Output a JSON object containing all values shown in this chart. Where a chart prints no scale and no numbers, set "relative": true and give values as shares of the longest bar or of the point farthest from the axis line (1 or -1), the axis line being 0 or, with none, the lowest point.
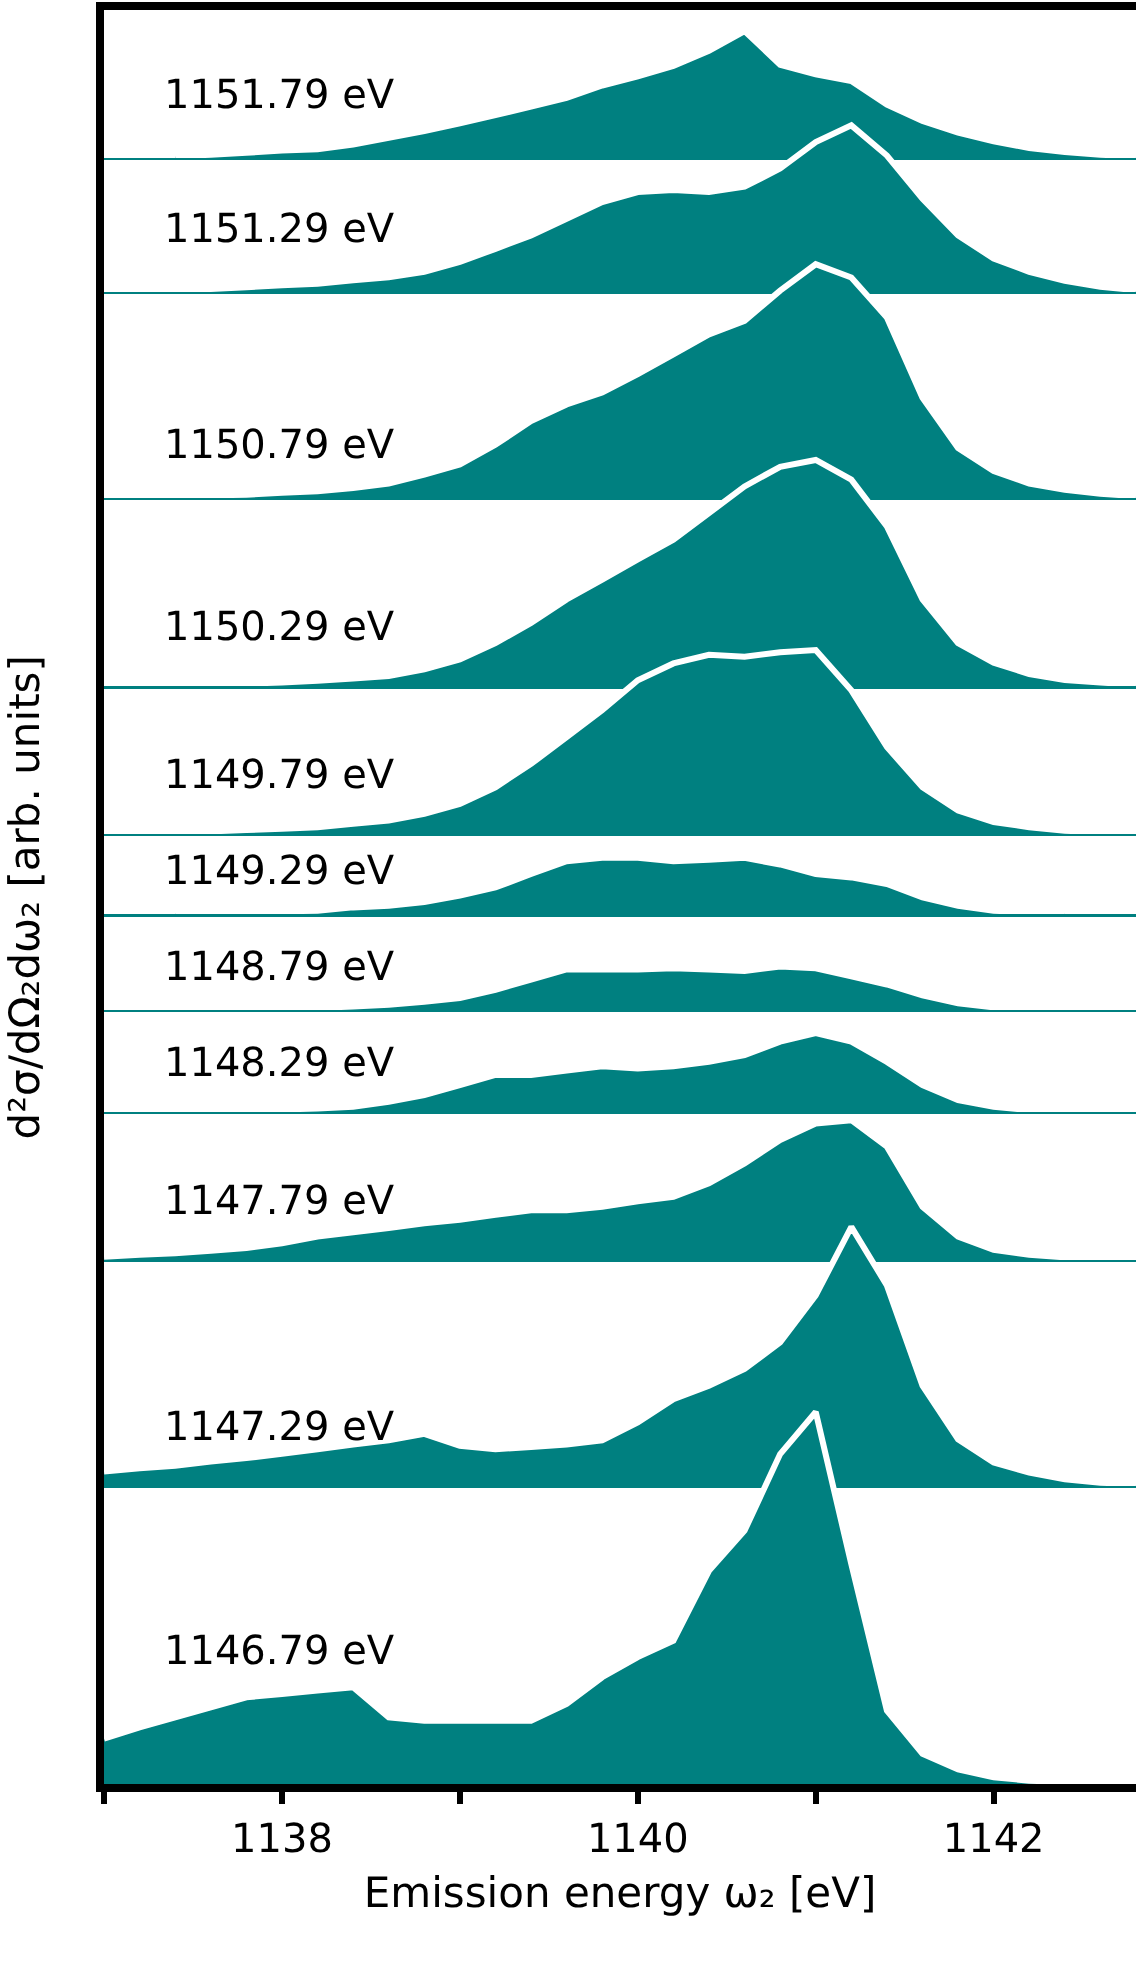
{
  "chart_data": [
    {
      "type": "area",
      "relative": true,
      "tick_labels": false,
      "xlim": [
        1137,
        1142.8
      ],
      "x": [
        1137.4,
        1137.6,
        1137.8,
        1138,
        1138.2,
        1138.4,
        1138.6,
        1138.8,
        1139,
        1139.2,
        1139.4,
        1139.6,
        1139.8,
        1140,
        1140.2,
        1140.4,
        1140.6,
        1140.8,
        1141,
        1141.2,
        1141.4,
        1141.6,
        1141.8,
        1142,
        1142.2,
        1142.4,
        1142.6,
        1142.8
      ],
      "series": [
        {
          "name": "1151.79 eV",
          "color": "#008080",
          "values": [
            0.012,
            0.026,
            0.041,
            0.059,
            0.068,
            0.106,
            0.159,
            0.212,
            0.274,
            0.338,
            0.406,
            0.474,
            0.571,
            0.644,
            0.726,
            0.844,
            1,
            0.735,
            0.659,
            0.606,
            0.421,
            0.291,
            0.2,
            0.132,
            0.079,
            0.047,
            0.026,
            0.012
          ]
        }
      ]
    },
    {
      "type": "area",
      "relative": true,
      "tick_labels": false,
      "xlim": [
        1137,
        1142.8
      ],
      "x": [
        1137,
        1137.2,
        1137.4,
        1137.6,
        1137.8,
        1138,
        1138.2,
        1138.4,
        1138.6,
        1138.8,
        1139,
        1139.2,
        1139.4,
        1139.6,
        1139.8,
        1140,
        1140.2,
        1140.4,
        1140.6,
        1140.8,
        1141,
        1141.2,
        1141.4,
        1141.6,
        1141.8,
        1142,
        1142.2,
        1142.4,
        1142.6,
        1142.8
      ],
      "series": [
        {
          "name": "1151.29 eV",
          "color": "#008080",
          "values": [
            0,
            0.007,
            0.011,
            0.018,
            0.029,
            0.04,
            0.049,
            0.071,
            0.089,
            0.121,
            0.181,
            0.259,
            0.339,
            0.44,
            0.54,
            0.6,
            0.612,
            0.6,
            0.632,
            0.741,
            0.9,
            1,
            0.819,
            0.56,
            0.339,
            0.201,
            0.121,
            0.067,
            0.031,
            0.011
          ]
        }
      ]
    },
    {
      "type": "area",
      "relative": true,
      "tick_labels": false,
      "xlim": [
        1137,
        1142.8
      ],
      "x": [
        1137,
        1137.2,
        1137.4,
        1137.6,
        1137.8,
        1138,
        1138.2,
        1138.4,
        1138.6,
        1138.8,
        1139,
        1139.2,
        1139.4,
        1139.6,
        1139.8,
        1140,
        1140.2,
        1140.4,
        1140.6,
        1140.8,
        1141,
        1141.2,
        1141.4,
        1141.6,
        1141.8,
        1142,
        1142.2,
        1142.4,
        1142.6,
        1142.8
      ],
      "series": [
        {
          "name": "1150.79 eV",
          "color": "#008080",
          "values": [
            0,
            0.005,
            0.008,
            0.011,
            0.014,
            0.022,
            0.029,
            0.043,
            0.062,
            0.1,
            0.144,
            0.228,
            0.329,
            0.4,
            0.451,
            0.53,
            0.614,
            0.7,
            0.758,
            0.887,
            1,
            0.943,
            0.772,
            0.429,
            0.214,
            0.115,
            0.062,
            0.035,
            0.018,
            0.008
          ]
        }
      ]
    },
    {
      "type": "area",
      "relative": true,
      "tick_labels": false,
      "xlim": [
        1137,
        1142.8
      ],
      "x": [
        1137,
        1137.2,
        1137.4,
        1137.6,
        1137.8,
        1138,
        1138.2,
        1138.4,
        1138.6,
        1138.8,
        1139,
        1139.2,
        1139.4,
        1139.6,
        1139.8,
        1140,
        1140.2,
        1140.4,
        1140.6,
        1140.8,
        1141,
        1141.2,
        1141.4,
        1141.6,
        1141.8,
        1142,
        1142.2,
        1142.4,
        1142.6,
        1142.8
      ],
      "series": [
        {
          "name": "1150.29 eV",
          "color": "#008080",
          "values": [
            0,
            0.003,
            0.005,
            0.008,
            0.011,
            0.015,
            0.023,
            0.033,
            0.044,
            0.074,
            0.118,
            0.19,
            0.279,
            0.383,
            0.471,
            0.56,
            0.647,
            0.765,
            0.883,
            0.97,
            1,
            0.913,
            0.706,
            0.383,
            0.19,
            0.103,
            0.053,
            0.026,
            0.015,
            0.007
          ]
        }
      ]
    },
    {
      "type": "area",
      "relative": true,
      "tick_labels": false,
      "xlim": [
        1137,
        1142.8
      ],
      "x": [
        1137,
        1137.2,
        1137.4,
        1137.6,
        1137.8,
        1138,
        1138.2,
        1138.4,
        1138.6,
        1138.8,
        1139,
        1139.2,
        1139.4,
        1139.6,
        1139.8,
        1140,
        1140.2,
        1140.4,
        1140.6,
        1140.8,
        1141,
        1141.2,
        1141.4,
        1141.6,
        1141.8,
        1142,
        1142.2,
        1142.4,
        1142.6,
        1142.8
      ],
      "series": [
        {
          "name": "1149.79 eV",
          "color": "#008080",
          "values": [
            0,
            0.004,
            0.008,
            0.014,
            0.022,
            0.028,
            0.037,
            0.055,
            0.073,
            0.11,
            0.164,
            0.254,
            0.381,
            0.527,
            0.673,
            0.836,
            0.927,
            0.974,
            0.963,
            0.988,
            1,
            0.781,
            0.473,
            0.254,
            0.128,
            0.065,
            0.037,
            0.018,
            0.008,
            0
          ]
        }
      ]
    },
    {
      "type": "area",
      "relative": true,
      "tick_labels": false,
      "xlim": [
        1137,
        1142.8
      ],
      "x": [
        1137.4,
        1137.6,
        1137.8,
        1138,
        1138.2,
        1138.4,
        1138.6,
        1138.8,
        1139,
        1139.2,
        1139.4,
        1139.6,
        1139.8,
        1140,
        1140.2,
        1140.4,
        1140.6,
        1140.8,
        1141,
        1141.2,
        1141.4,
        1141.6,
        1141.8,
        1142,
        1142.2,
        1142.4
      ],
      "series": [
        {
          "name": "1149.29 eV",
          "color": "#008080",
          "values": [
            0.013,
            0.026,
            0.039,
            0.046,
            0.059,
            0.118,
            0.145,
            0.211,
            0.329,
            0.474,
            0.711,
            0.941,
            1,
            1,
            0.941,
            0.967,
            1,
            0.882,
            0.711,
            0.651,
            0.533,
            0.296,
            0.145,
            0.059,
            0.026,
            0.007
          ]
        }
      ]
    },
    {
      "type": "area",
      "relative": true,
      "tick_labels": false,
      "xlim": [
        1137,
        1142.8
      ],
      "x": [
        1137,
        1137.2,
        1137.4,
        1137.6,
        1137.8,
        1138,
        1138.2,
        1138.4,
        1138.6,
        1138.8,
        1139,
        1139.2,
        1139.4,
        1139.6,
        1139.8,
        1140,
        1140.2,
        1140.4,
        1140.6,
        1140.8,
        1141,
        1141.2,
        1141.4,
        1141.6,
        1141.8,
        1142,
        1142.2,
        1142.4
      ],
      "series": [
        {
          "name": "1148.79 eV",
          "color": "#008080",
          "values": [
            0,
            0.009,
            0.017,
            0.026,
            0.034,
            0.043,
            0.052,
            0.078,
            0.121,
            0.19,
            0.276,
            0.466,
            0.698,
            0.931,
            0.931,
            0.931,
            0.957,
            0.931,
            0.897,
            1,
            0.957,
            0.776,
            0.586,
            0.336,
            0.155,
            0.06,
            0.017,
            0
          ]
        }
      ]
    },
    {
      "type": "area",
      "relative": true,
      "tick_labels": false,
      "xlim": [
        1137,
        1142.8
      ],
      "x": [
        1137,
        1137.2,
        1137.4,
        1137.6,
        1137.8,
        1138,
        1138.2,
        1138.4,
        1138.6,
        1138.8,
        1139,
        1139.2,
        1139.4,
        1139.6,
        1139.8,
        1140,
        1140.2,
        1140.4,
        1140.6,
        1140.8,
        1141,
        1141.2,
        1141.4,
        1141.6,
        1141.8,
        1142,
        1142.2,
        1142.4,
        1142.6
      ],
      "series": [
        {
          "name": "1148.29 eV",
          "color": "#008080",
          "values": [
            0,
            0.009,
            0.014,
            0.019,
            0.028,
            0.033,
            0.043,
            0.066,
            0.128,
            0.213,
            0.341,
            0.469,
            0.469,
            0.526,
            0.578,
            0.55,
            0.578,
            0.635,
            0.72,
            0.891,
            1,
            0.891,
            0.635,
            0.341,
            0.152,
            0.066,
            0.024,
            0.009,
            0
          ]
        }
      ]
    },
    {
      "type": "area",
      "relative": true,
      "tick_labels": false,
      "xlim": [
        1137,
        1142.8
      ],
      "x": [
        1137,
        1137.2,
        1137.4,
        1137.6,
        1137.8,
        1138,
        1138.2,
        1138.4,
        1138.6,
        1138.8,
        1139,
        1139.2,
        1139.4,
        1139.6,
        1139.8,
        1140,
        1140.2,
        1140.4,
        1140.6,
        1140.8,
        1141,
        1141.2,
        1141.4,
        1141.6,
        1141.8,
        1142,
        1142.2,
        1142.4,
        1142.6,
        1142.8
      ],
      "series": [
        {
          "name": "1147.79 eV",
          "color": "#008080",
          "values": [
            0.024,
            0.037,
            0.048,
            0.066,
            0.085,
            0.12,
            0.168,
            0.199,
            0.229,
            0.263,
            0.287,
            0.324,
            0.356,
            0.356,
            0.38,
            0.42,
            0.452,
            0.548,
            0.691,
            0.859,
            0.976,
            1,
            0.811,
            0.38,
            0.168,
            0.072,
            0.037,
            0.019,
            0.011,
            0
          ]
        }
      ]
    },
    {
      "type": "area",
      "relative": true,
      "tick_labels": false,
      "xlim": [
        1137,
        1142.8
      ],
      "x": [
        1137,
        1137.2,
        1137.4,
        1137.6,
        1137.8,
        1138,
        1138.2,
        1138.4,
        1138.6,
        1138.8,
        1139,
        1139.2,
        1139.4,
        1139.6,
        1139.8,
        1140,
        1140.2,
        1140.4,
        1140.6,
        1140.8,
        1141,
        1141.2,
        1141.4,
        1141.6,
        1141.8,
        1142,
        1142.2,
        1142.4,
        1142.6,
        1142.8
      ],
      "series": [
        {
          "name": "1147.29 eV",
          "color": "#008080",
          "values": [
            0.056,
            0.068,
            0.078,
            0.094,
            0.108,
            0.124,
            0.142,
            0.16,
            0.176,
            0.201,
            0.155,
            0.142,
            0.15,
            0.16,
            0.176,
            0.245,
            0.335,
            0.387,
            0.452,
            0.554,
            0.735,
            1,
            0.774,
            0.387,
            0.18,
            0.091,
            0.052,
            0.026,
            0.013,
            0.006
          ]
        }
      ]
    },
    {
      "type": "area",
      "relative": true,
      "tick_labels": "x",
      "xlim": [
        1137,
        1142.8
      ],
      "xlabel": "Emission energy ω₂ [eV]",
      "ylabel": "d²σ/dΩ₂dω₂ [arb. units]",
      "xticks": [
        {
          "value": 1137,
          "label": null
        },
        1138,
        {
          "value": 1139,
          "label": null
        },
        1140,
        {
          "value": 1141,
          "label": null
        },
        1142
      ],
      "x": [
        1137,
        1137.2,
        1137.4,
        1137.6,
        1137.8,
        1138,
        1138.2,
        1138.4,
        1138.6,
        1138.8,
        1139,
        1139.2,
        1139.4,
        1139.6,
        1139.8,
        1140,
        1140.2,
        1140.4,
        1140.6,
        1140.8,
        1141,
        1141.2,
        1141.4,
        1141.6,
        1141.8,
        1142,
        1142.2,
        1142.4,
        1142.6,
        1142.8
      ],
      "series": [
        {
          "name": "1146.79 eV",
          "color": "#008080",
          "values": [
            0.122,
            0.152,
            0.179,
            0.206,
            0.233,
            0.242,
            0.251,
            0.26,
            0.179,
            0.17,
            0.17,
            0.17,
            0.17,
            0.215,
            0.287,
            0.341,
            0.385,
            0.573,
            0.681,
            0.887,
            1,
            0.591,
            0.197,
            0.081,
            0.039,
            0.018,
            0.009,
            0.005,
            0.002,
            0
          ]
        }
      ]
    }
  ]
}
